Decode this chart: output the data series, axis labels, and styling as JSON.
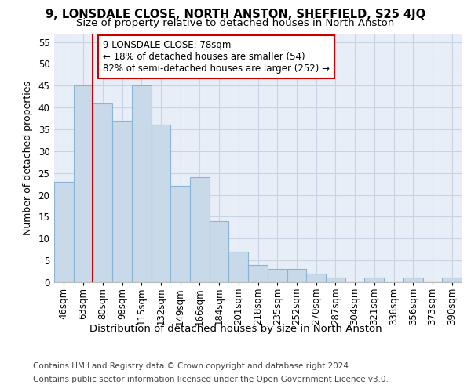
{
  "title": "9, LONSDALE CLOSE, NORTH ANSTON, SHEFFIELD, S25 4JQ",
  "subtitle": "Size of property relative to detached houses in North Anston",
  "xlabel": "Distribution of detached houses by size in North Anston",
  "ylabel": "Number of detached properties",
  "bar_labels": [
    "46sqm",
    "63sqm",
    "80sqm",
    "98sqm",
    "115sqm",
    "132sqm",
    "149sqm",
    "166sqm",
    "184sqm",
    "201sqm",
    "218sqm",
    "235sqm",
    "252sqm",
    "270sqm",
    "287sqm",
    "304sqm",
    "321sqm",
    "338sqm",
    "356sqm",
    "373sqm",
    "390sqm"
  ],
  "bar_values": [
    23,
    45,
    41,
    37,
    45,
    36,
    22,
    24,
    14,
    7,
    4,
    3,
    3,
    2,
    1,
    0,
    1,
    0,
    1,
    0,
    1
  ],
  "bar_color": "#c8daea",
  "bar_edge_color": "#8ab4d4",
  "vline_index": 2,
  "vline_color": "#cc0000",
  "annotation_text": "9 LONSDALE CLOSE: 78sqm\n← 18% of detached houses are smaller (54)\n82% of semi-detached houses are larger (252) →",
  "annotation_box_color": "#ffffff",
  "annotation_box_edge": "#cc0000",
  "ylim": [
    0,
    57
  ],
  "yticks": [
    0,
    5,
    10,
    15,
    20,
    25,
    30,
    35,
    40,
    45,
    50,
    55
  ],
  "grid_color": "#c8d4e4",
  "bg_color": "#e8eef8",
  "footer1": "Contains HM Land Registry data © Crown copyright and database right 2024.",
  "footer2": "Contains public sector information licensed under the Open Government Licence v3.0.",
  "title_fontsize": 10.5,
  "subtitle_fontsize": 9.5,
  "xlabel_fontsize": 9.5,
  "ylabel_fontsize": 9,
  "tick_fontsize": 8.5,
  "annotation_fontsize": 8.5,
  "footer_fontsize": 7.5
}
